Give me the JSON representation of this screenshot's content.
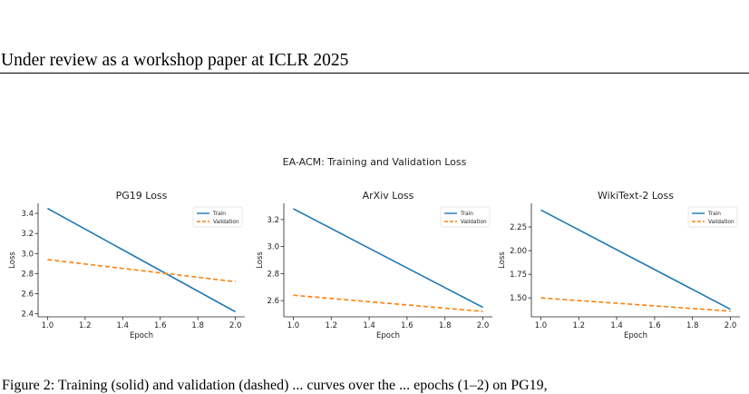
{
  "header": {
    "text": "Under review as a workshop paper at ICLR 2025"
  },
  "figure": {
    "suptitle": "EA-ACM: Training and Validation Loss"
  },
  "caption": {
    "text": "Figure 2:  Training (solid) and validation (dashed) ... curves over the ... epochs (1–2) on PG19,"
  },
  "colors": {
    "train": "#1f77b4",
    "validation": "#ff7f0e"
  },
  "chart_data": [
    {
      "type": "line",
      "title": "PG19 Loss",
      "xlabel": "Epoch",
      "ylabel": "Loss",
      "xlim": [
        0.95,
        2.05
      ],
      "ylim": [
        2.37,
        3.5
      ],
      "xticks": [
        "1.0",
        "1.2",
        "1.4",
        "1.6",
        "1.8",
        "2.0"
      ],
      "yticks": [
        "2.4",
        "2.6",
        "2.8",
        "3.0",
        "3.2",
        "3.4"
      ],
      "legend": "upper-right",
      "series": [
        {
          "name": "Train",
          "style": "solid",
          "x": [
            1.0,
            2.0
          ],
          "values": [
            3.45,
            2.42
          ]
        },
        {
          "name": "Validation",
          "style": "dashed",
          "x": [
            1.0,
            2.0
          ],
          "values": [
            2.94,
            2.72
          ]
        }
      ]
    },
    {
      "type": "line",
      "title": "ArXiv Loss",
      "xlabel": "Epoch",
      "ylabel": "Loss",
      "xlim": [
        0.95,
        2.05
      ],
      "ylim": [
        2.48,
        3.32
      ],
      "xticks": [
        "1.0",
        "1.2",
        "1.4",
        "1.6",
        "1.8",
        "2.0"
      ],
      "yticks": [
        "2.6",
        "2.8",
        "3.0",
        "3.2"
      ],
      "legend": "upper-right",
      "series": [
        {
          "name": "Train",
          "style": "solid",
          "x": [
            1.0,
            2.0
          ],
          "values": [
            3.28,
            2.55
          ]
        },
        {
          "name": "Validation",
          "style": "dashed",
          "x": [
            1.0,
            2.0
          ],
          "values": [
            2.64,
            2.52
          ]
        }
      ]
    },
    {
      "type": "line",
      "title": "WikiText-2 Loss",
      "xlabel": "Epoch",
      "ylabel": "Loss",
      "xlim": [
        0.95,
        2.05
      ],
      "ylim": [
        1.3,
        2.5
      ],
      "xticks": [
        "1.0",
        "1.2",
        "1.4",
        "1.6",
        "1.8",
        "2.0"
      ],
      "yticks": [
        "1.50",
        "1.75",
        "2.00",
        "2.25"
      ],
      "legend": "upper-right",
      "series": [
        {
          "name": "Train",
          "style": "solid",
          "x": [
            1.0,
            2.0
          ],
          "values": [
            2.43,
            1.38
          ]
        },
        {
          "name": "Validation",
          "style": "dashed",
          "x": [
            1.0,
            2.0
          ],
          "values": [
            1.5,
            1.36
          ]
        }
      ]
    }
  ]
}
